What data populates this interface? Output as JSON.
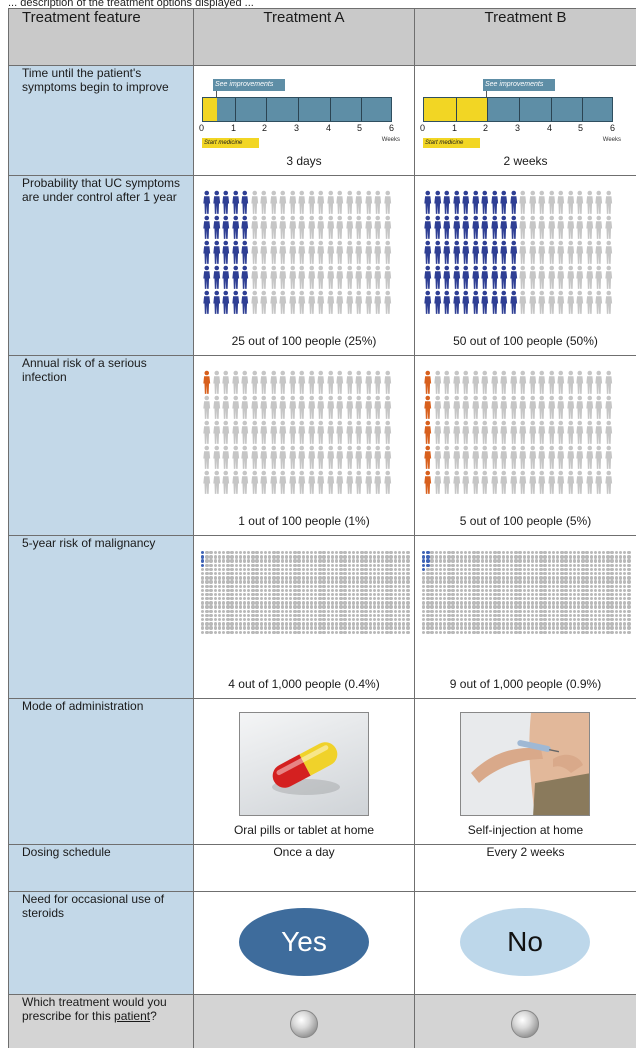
{
  "intro_text": "... description of the treatment options displayed ...",
  "header": {
    "feature": "Treatment feature",
    "a": "Treatment A",
    "b": "Treatment B"
  },
  "rows": {
    "time": {
      "label": "Time until the patient's symptoms begin to improve",
      "a": "3 days",
      "b": "2 weeks"
    },
    "probability": {
      "label": "Probability that UC symptoms are under control after 1 year",
      "a": "25 out of 100 people (25%)",
      "b": "50 out of 100 people (50%)"
    },
    "infection": {
      "label": "Annual risk of a serious infection",
      "a": "1 out of 100 people (1%)",
      "b": "5 out of 100 people (5%)"
    },
    "malignancy": {
      "label": "5-year risk of malignancy",
      "a": "4 out of 1,000 people (0.4%)",
      "b": "9 out of 1,000 people (0.9%)"
    },
    "mode": {
      "label": "Mode of administration",
      "a": "Oral pills or tablet at home",
      "b": "Self-injection at home"
    },
    "dosing": {
      "label": "Dosing schedule",
      "a": "Once a day",
      "b": "Every 2 weeks"
    },
    "steroids": {
      "label": "Need for occasional use of steroids",
      "a": "Yes",
      "b": "No"
    },
    "choice": {
      "label_pre": "Which treatment would you prescribe for this ",
      "label_link": "patient",
      "label_post": "?"
    }
  },
  "timeline": {
    "see_label": "See improvements",
    "start_label": "Start medicine",
    "weeks_label": "Weeks",
    "ticks": [
      "0",
      "1",
      "2",
      "3",
      "4",
      "5",
      "6"
    ],
    "max_weeks": 6,
    "a_weeks": 0.43,
    "b_weeks": 2
  },
  "icons": {
    "probability_a": 25,
    "probability_b": 50,
    "infection_a": 1,
    "infection_b": 5,
    "malignancy_a": 4,
    "malignancy_b": 9,
    "colors": {
      "blue": "#2f3f94",
      "orange": "#d8601d",
      "gray": "#c6c6c6",
      "dot_blue": "#3f63b6"
    }
  }
}
